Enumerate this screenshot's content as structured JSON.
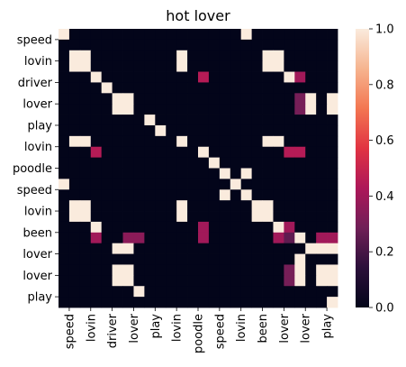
{
  "chart_data": {
    "type": "heatmap",
    "title": "hot lover",
    "row_labels": [
      "speed",
      "lovin",
      "driver",
      "lover",
      "play",
      "lovin",
      "poodle",
      "speed",
      "lovin",
      "been",
      "lover",
      "lover",
      "play"
    ],
    "col_labels": [
      "speed",
      "lovin",
      "driver",
      "lover",
      "play",
      "lovin",
      "poodle",
      "speed",
      "lovin",
      "been",
      "lover",
      "lover",
      "play"
    ],
    "fine_grid": {
      "rows": 26,
      "cols": 26,
      "values": [
        [
          1,
          0,
          0,
          0,
          0,
          0,
          0,
          0,
          0,
          0,
          0,
          0,
          0,
          0,
          0,
          0,
          0,
          1,
          0,
          0,
          0,
          0,
          0,
          0,
          0,
          0
        ],
        [
          0,
          0,
          0,
          0,
          0,
          0,
          0,
          0,
          0,
          0,
          0,
          0,
          0,
          0,
          0,
          0,
          0,
          0,
          0,
          0,
          0,
          0,
          0,
          0,
          0,
          0
        ],
        [
          0,
          1,
          1,
          0,
          0,
          0,
          0,
          0,
          0,
          0,
          0,
          1,
          0,
          0,
          0,
          0,
          0,
          0,
          0,
          1,
          1,
          0,
          0,
          0,
          0,
          0
        ],
        [
          0,
          1,
          1,
          0,
          0,
          0,
          0,
          0,
          0,
          0,
          0,
          1,
          0,
          0,
          0,
          0,
          0,
          0,
          0,
          1,
          1,
          0,
          0,
          0,
          0,
          0
        ],
        [
          0,
          0,
          0,
          1,
          0,
          0,
          0,
          0,
          0,
          0,
          0,
          0,
          0,
          0.45,
          0,
          0,
          0,
          0,
          0,
          0,
          0,
          1,
          0.4,
          0,
          0,
          0
        ],
        [
          0,
          0,
          0,
          0,
          1,
          0,
          0,
          0,
          0,
          0,
          0,
          0,
          0,
          0,
          0,
          0,
          0,
          0,
          0,
          0,
          0,
          0,
          0,
          0,
          0,
          0
        ],
        [
          0,
          0,
          0,
          0,
          0,
          1,
          1,
          0,
          0,
          0,
          0,
          0,
          0,
          0,
          0,
          0,
          0,
          0,
          0,
          0,
          0,
          0,
          0.3,
          1,
          0,
          1
        ],
        [
          0,
          0,
          0,
          0,
          0,
          1,
          1,
          0,
          0,
          0,
          0,
          0,
          0,
          0,
          0,
          0,
          0,
          0,
          0,
          0,
          0,
          0,
          0.3,
          1,
          0,
          1
        ],
        [
          0,
          0,
          0,
          0,
          0,
          0,
          0,
          0,
          1,
          0,
          0,
          0,
          0,
          0,
          0,
          0,
          0,
          0,
          0,
          0,
          0,
          0,
          0,
          0,
          0,
          0
        ],
        [
          0,
          0,
          0,
          0,
          0,
          0,
          0,
          0,
          0,
          1,
          0,
          0,
          0,
          0,
          0,
          0,
          0,
          0,
          0,
          0,
          0,
          0,
          0,
          0,
          0,
          0
        ],
        [
          0,
          1,
          1,
          0,
          0,
          0,
          0,
          0,
          0,
          0,
          0,
          1,
          0,
          0,
          0,
          0,
          0,
          0,
          0,
          1,
          1,
          0,
          0,
          0,
          0,
          0
        ],
        [
          0,
          0,
          0,
          0.45,
          0,
          0,
          0,
          0,
          0,
          0,
          0,
          0,
          0,
          1,
          0,
          0,
          0,
          0,
          0,
          0,
          0,
          0.45,
          0.45,
          0,
          0,
          0
        ],
        [
          0,
          0,
          0,
          0,
          0,
          0,
          0,
          0,
          0,
          0,
          0,
          0,
          0,
          0,
          1,
          0,
          0,
          0,
          0,
          0,
          0,
          0,
          0,
          0,
          0,
          0
        ],
        [
          0,
          0,
          0,
          0,
          0,
          0,
          0,
          0,
          0,
          0,
          0,
          0,
          0,
          0,
          0,
          1,
          0,
          1,
          0,
          0,
          0,
          0,
          0,
          0,
          0,
          0
        ],
        [
          1,
          0,
          0,
          0,
          0,
          0,
          0,
          0,
          0,
          0,
          0,
          0,
          0,
          0,
          0,
          0,
          1,
          0,
          0,
          0,
          0,
          0,
          0,
          0,
          0,
          0
        ],
        [
          0,
          0,
          0,
          0,
          0,
          0,
          0,
          0,
          0,
          0,
          0,
          0,
          0,
          0,
          0,
          1,
          0,
          1,
          0,
          0,
          0,
          0,
          0,
          0,
          0,
          0
        ],
        [
          0,
          1,
          1,
          0,
          0,
          0,
          0,
          0,
          0,
          0,
          0,
          1,
          0,
          0,
          0,
          0,
          0,
          0,
          1,
          1,
          0,
          0,
          0,
          0,
          0,
          0
        ],
        [
          0,
          1,
          1,
          0,
          0,
          0,
          0,
          0,
          0,
          0,
          0,
          1,
          0,
          0,
          0,
          0,
          0,
          0,
          1,
          1,
          0,
          0,
          0,
          0,
          0,
          0
        ],
        [
          0,
          0,
          0,
          1,
          0,
          0,
          0,
          0,
          0,
          0,
          0,
          0,
          0,
          0.4,
          0,
          0,
          0,
          0,
          0,
          0,
          1,
          0.4,
          0,
          0,
          0,
          0
        ],
        [
          0,
          0,
          0,
          0.4,
          0,
          0,
          0.35,
          0.35,
          0,
          0,
          0,
          0,
          0,
          0.4,
          0,
          0,
          0,
          0,
          0,
          0,
          0.4,
          0.25,
          1,
          0,
          0.4,
          0.4
        ],
        [
          0,
          0,
          0,
          0,
          0,
          1,
          1,
          0,
          0,
          0,
          0,
          0,
          0,
          0,
          0,
          0,
          0,
          0,
          0,
          0,
          0,
          0,
          0,
          1,
          1,
          1
        ],
        [
          0,
          0,
          0,
          0,
          0,
          0,
          0,
          0,
          0,
          0,
          0,
          0,
          0,
          0,
          0,
          0,
          0,
          0,
          0,
          0,
          0,
          0,
          1,
          0,
          0,
          0
        ],
        [
          0,
          0,
          0,
          0,
          0,
          1,
          1,
          0,
          0,
          0,
          0,
          0,
          0,
          0,
          0,
          0,
          0,
          0,
          0,
          0,
          0,
          0.3,
          1,
          0,
          1,
          1
        ],
        [
          0,
          0,
          0,
          0,
          0,
          1,
          1,
          0,
          0,
          0,
          0,
          0,
          0,
          0,
          0,
          0,
          0,
          0,
          0,
          0,
          0,
          0.3,
          1,
          0,
          1,
          1
        ],
        [
          0,
          0,
          0,
          0,
          0,
          0,
          0,
          1,
          0,
          0,
          0,
          0,
          0,
          0,
          0,
          0,
          0,
          0,
          0,
          0,
          0,
          0,
          0,
          0,
          0,
          0
        ],
        [
          0,
          0,
          0,
          0,
          0,
          0,
          0,
          0,
          0,
          0,
          0,
          0,
          0,
          0,
          0,
          0,
          0,
          0,
          0,
          0,
          0,
          0,
          0,
          0,
          0,
          1
        ]
      ]
    },
    "colorbar": {
      "range": [
        0.0,
        1.0
      ],
      "ticks": [
        0.0,
        0.2,
        0.4,
        0.6,
        0.8,
        1.0
      ],
      "tick_labels": [
        "0.0",
        "0.2",
        "0.4",
        "0.6",
        "0.8",
        "1.0"
      ],
      "colormap": "rocket",
      "stops": [
        "#03051a",
        "#2b0f3a",
        "#701f57",
        "#ad1759",
        "#e13342",
        "#f37651",
        "#f6b48f",
        "#faebdd"
      ]
    },
    "grid": false,
    "legend": "colorbar-right"
  }
}
